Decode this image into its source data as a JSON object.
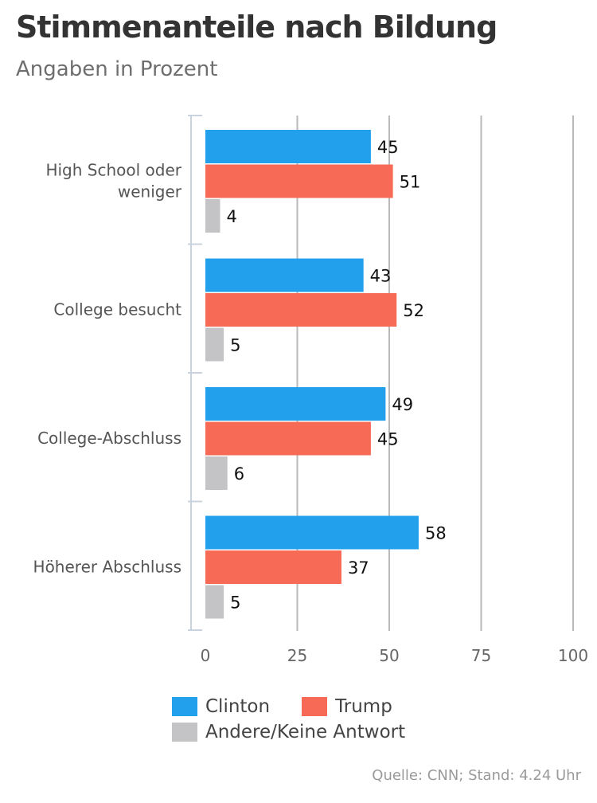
{
  "chart_data": {
    "type": "bar",
    "orientation": "horizontal",
    "title": "Stimmenanteile nach Bildung",
    "subtitle": "Angaben in Prozent",
    "categories": [
      [
        "High School oder",
        "weniger"
      ],
      [
        "College besucht"
      ],
      [
        "College-Abschluss"
      ],
      [
        "Höherer Abschluss"
      ]
    ],
    "series": [
      {
        "name": "Clinton",
        "color": "#22a0ec",
        "values": [
          45,
          43,
          49,
          58
        ]
      },
      {
        "name": "Trump",
        "color": "#f76a55",
        "values": [
          51,
          52,
          45,
          37
        ]
      },
      {
        "name": "Andere/Keine Antwort",
        "color": "#c4c4c6",
        "values": [
          4,
          5,
          6,
          5
        ]
      }
    ],
    "xlim": [
      0,
      100
    ],
    "xticks": [
      0,
      25,
      50,
      75,
      100
    ],
    "grid": true,
    "legend_position": "bottom"
  },
  "source": "Quelle: CNN; Stand: 4.24 Uhr"
}
